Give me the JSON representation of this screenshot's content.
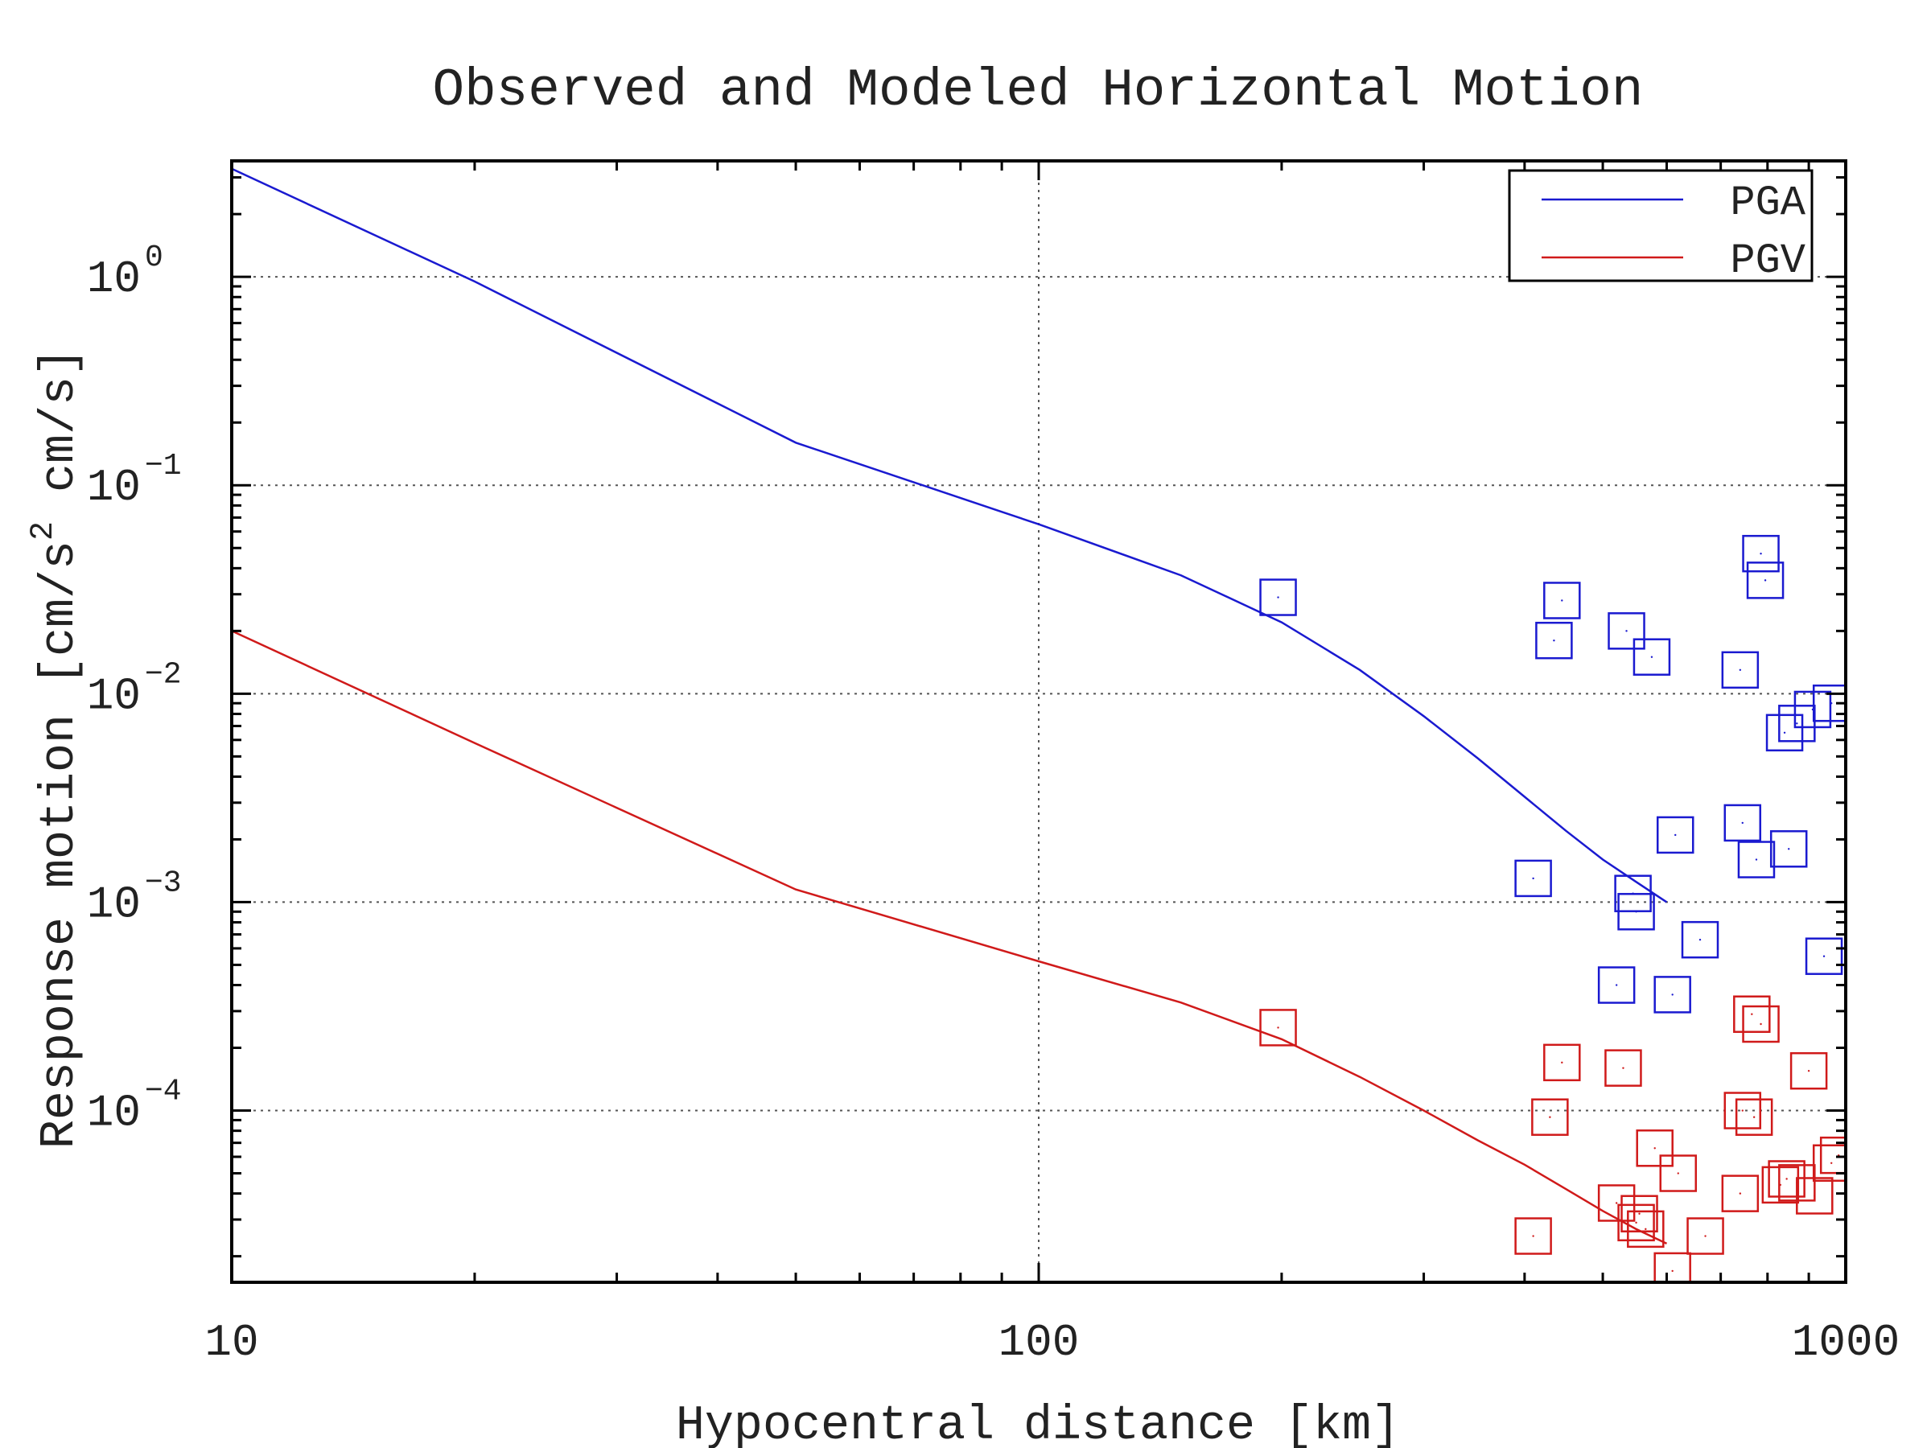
{
  "chart_data": {
    "type": "scatter",
    "title": "Observed and Modeled Horizontal Motion",
    "xlabel": "Hypocentral distance [km]",
    "ylabel": "Response motion [cm/s² cm/s]",
    "xscale": "log",
    "yscale": "log",
    "xlim": [
      10,
      1000
    ],
    "ylim": [
      1.5e-05,
      3.6
    ],
    "x_ticks": [
      {
        "value": 10,
        "label": "10"
      },
      {
        "value": 100,
        "label": "100"
      },
      {
        "value": 1000,
        "label": "1000"
      }
    ],
    "y_ticks": [
      {
        "value": 1,
        "base": "10",
        "exp": "0"
      },
      {
        "value": 0.1,
        "base": "10",
        "exp": "−1"
      },
      {
        "value": 0.01,
        "base": "10",
        "exp": "−2"
      },
      {
        "value": 0.001,
        "base": "10",
        "exp": "−3"
      },
      {
        "value": 0.0001,
        "base": "10",
        "exp": "−4"
      }
    ],
    "grid": true,
    "legend_position": "top-right",
    "series": [
      {
        "name": "PGA",
        "kind": "line",
        "color": "#1a1ad0",
        "x": [
          10,
          20,
          50,
          100,
          150,
          200,
          250,
          300,
          350,
          400,
          450,
          500,
          550,
          600
        ],
        "y": [
          3.3,
          0.95,
          0.16,
          0.065,
          0.037,
          0.022,
          0.013,
          0.0078,
          0.0049,
          0.0032,
          0.0022,
          0.0016,
          0.00125,
          0.001
        ]
      },
      {
        "name": "PGV",
        "kind": "line",
        "color": "#d01a1a",
        "x": [
          10,
          20,
          50,
          100,
          150,
          200,
          250,
          300,
          350,
          400,
          450,
          500,
          550,
          600
        ],
        "y": [
          0.02,
          0.0058,
          0.00115,
          0.00052,
          0.00033,
          0.00022,
          0.000145,
          0.0001,
          7.2e-05,
          5.5e-05,
          4.2e-05,
          3.3e-05,
          2.7e-05,
          2.3e-05
        ]
      },
      {
        "name": "PGA observed",
        "kind": "markers",
        "marker": "square",
        "color": "#1a1ad0",
        "x": [
          198,
          410,
          435,
          445,
          520,
          535,
          545,
          550,
          575,
          610,
          615,
          660,
          740,
          745,
          775,
          785,
          795,
          840,
          850,
          870,
          910,
          940,
          960
        ],
        "y": [
          0.029,
          0.0013,
          0.018,
          0.028,
          0.0004,
          0.02,
          0.0011,
          0.0009,
          0.015,
          0.00036,
          0.0021,
          0.00066,
          0.013,
          0.0024,
          0.0016,
          0.047,
          0.035,
          0.0065,
          0.0018,
          0.0072,
          0.0084,
          0.00055,
          0.009
        ]
      },
      {
        "name": "PGV observed",
        "kind": "markers",
        "marker": "square",
        "color": "#d01a1a",
        "x": [
          198,
          410,
          430,
          445,
          520,
          530,
          550,
          555,
          565,
          580,
          610,
          620,
          670,
          740,
          745,
          765,
          770,
          785,
          830,
          845,
          870,
          900,
          915,
          960,
          980
        ],
        "y": [
          0.00025,
          2.5e-05,
          9.3e-05,
          0.00017,
          3.6e-05,
          0.00016,
          2.9e-05,
          3.2e-05,
          2.7e-05,
          6.6e-05,
          1.7e-05,
          5e-05,
          2.5e-05,
          4e-05,
          0.0001,
          0.00029,
          9.3e-05,
          0.00026,
          4.4e-05,
          4.7e-05,
          4.5e-05,
          0.000155,
          3.9e-05,
          5.6e-05,
          6.1e-05
        ]
      }
    ]
  }
}
